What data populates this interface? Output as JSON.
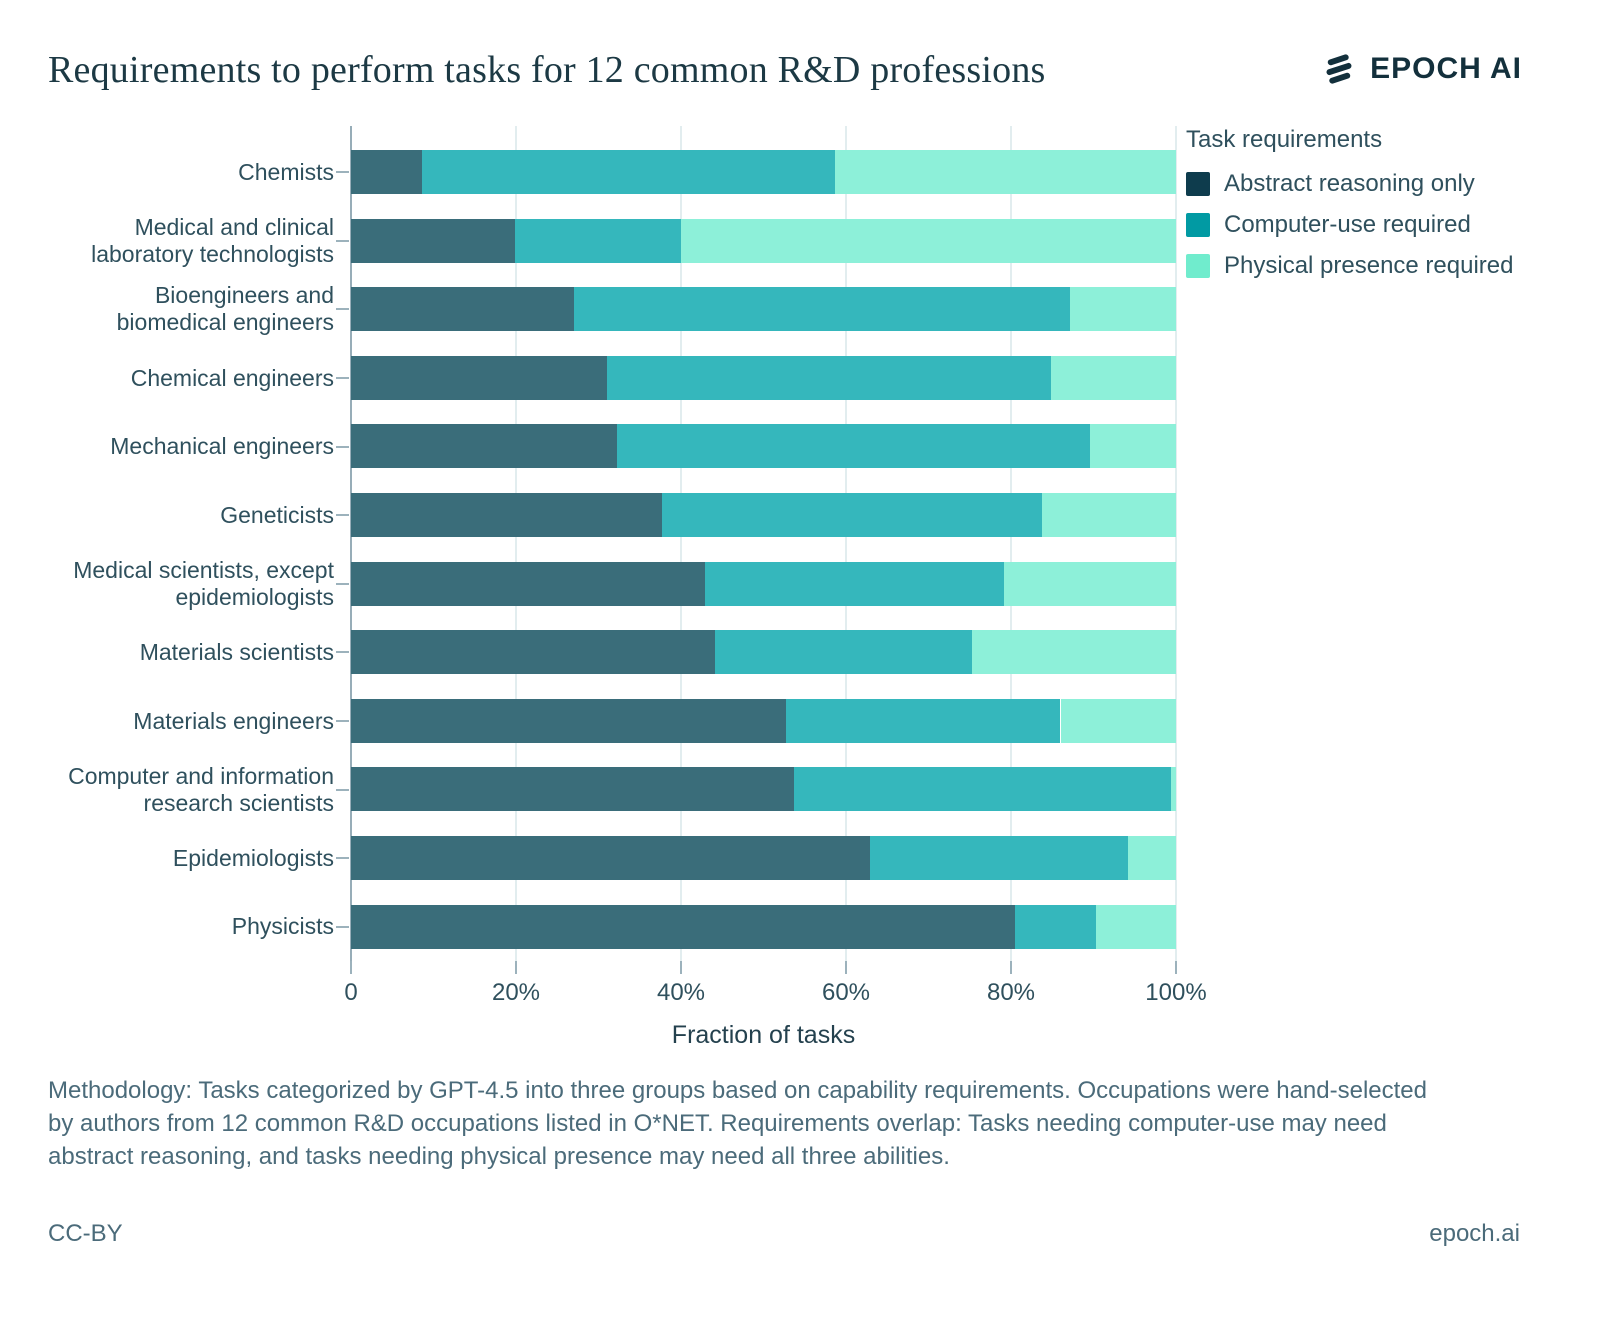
{
  "header": {
    "title": "Requirements to perform tasks for 12 common R&D professions",
    "logo_text": "EPOCH AI"
  },
  "legend": {
    "title": "Task requirements",
    "items": [
      {
        "label": "Abstract reasoning only",
        "legend_color": "#0e3c4d",
        "bar_color": "#3a6d7a"
      },
      {
        "label": "Computer-use required",
        "legend_color": "#019aa3",
        "bar_color": "#35b7bc"
      },
      {
        "label": "Physical presence required",
        "legend_color": "#70eccd",
        "bar_color": "#8df0d9"
      }
    ]
  },
  "chart_data": {
    "type": "bar",
    "orientation": "horizontal",
    "stacked": true,
    "title": "Requirements to perform tasks for 12 common R&D professions",
    "xlabel": "Fraction of tasks",
    "ylabel": "",
    "xlim": [
      0,
      100
    ],
    "grid": "vertical",
    "legend_position": "right",
    "x_ticks": [
      "0",
      "20%",
      "40%",
      "60%",
      "80%",
      "100%"
    ],
    "x_tick_values": [
      0,
      20,
      40,
      60,
      80,
      100
    ],
    "categories": [
      "Chemists",
      "Medical and clinical\nlaboratory technologists",
      "Bioengineers and\nbiomedical engineers",
      "Chemical engineers",
      "Mechanical engineers",
      "Geneticists",
      "Medical scientists, except\nepidemiologists",
      "Materials scientists",
      "Materials engineers",
      "Computer and information\nresearch scientists",
      "Epidemiologists",
      "Physicists"
    ],
    "series": [
      {
        "name": "Abstract reasoning only",
        "values": [
          8.6,
          19.9,
          27.0,
          31.0,
          32.3,
          37.7,
          42.9,
          44.1,
          52.7,
          53.7,
          62.9,
          80.5
        ]
      },
      {
        "name": "Computer-use required",
        "values": [
          50.1,
          20.1,
          60.1,
          53.9,
          57.3,
          46.1,
          36.2,
          31.2,
          33.3,
          45.7,
          31.3,
          9.8
        ]
      },
      {
        "name": "Physical presence required",
        "values": [
          41.3,
          60.0,
          12.9,
          15.1,
          10.4,
          16.2,
          20.9,
          24.7,
          14.0,
          0.6,
          5.8,
          9.7
        ]
      }
    ]
  },
  "footnote": "Methodology: Tasks categorized by GPT-4.5 into three groups based on capability requirements. Occupations were hand-selected\nby authors from 12 common R&D occupations listed in O*NET. Requirements overlap: Tasks needing computer-use may need\nabstract reasoning, and tasks needing physical presence may need all three abilities.",
  "footer": {
    "left": "CC-BY",
    "right": "epoch.ai"
  }
}
